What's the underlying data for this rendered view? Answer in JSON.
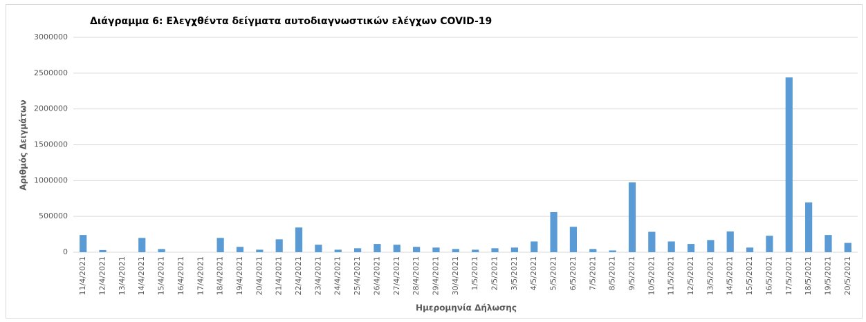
{
  "chart_data": {
    "type": "bar",
    "title": "Διάγραμμα 6: Ελεγχθέντα δείγματα αυτοδιαγνωστικών  ελέγχων COVID-19",
    "x_label": "Ημερομηνία Δήλωσης",
    "y_label": "Αριθμός Δειγμάτων",
    "categories": [
      "11/4/2021",
      "12/4/2021",
      "13/4/2021",
      "14/4/2021",
      "15/4/2021",
      "16/4/2021",
      "17/4/2021",
      "18/4/2021",
      "19/4/2021",
      "20/4/2021",
      "21/4/2021",
      "22/4/2021",
      "23/4/2021",
      "24/4/2021",
      "25/4/2021",
      "26/4/2021",
      "27/4/2021",
      "28/4/2021",
      "29/4/2021",
      "30/4/2021",
      "1/5/2021",
      "2/5/2021",
      "3/5/2021",
      "4/5/2021",
      "5/5/2021",
      "6/5/2021",
      "7/5/2021",
      "8/5/2021",
      "9/5/2021",
      "10/5/2021",
      "11/5/2021",
      "12/5/2021",
      "13/5/2021",
      "14/5/2021",
      "15/5/2021",
      "16/5/2021",
      "17/5/2021",
      "18/5/2021",
      "19/5/2021",
      "20/5/2021"
    ],
    "values": [
      240000,
      30000,
      0,
      200000,
      45000,
      0,
      0,
      200000,
      75000,
      35000,
      180000,
      345000,
      105000,
      35000,
      55000,
      115000,
      105000,
      75000,
      65000,
      45000,
      35000,
      55000,
      65000,
      150000,
      560000,
      355000,
      45000,
      25000,
      975000,
      285000,
      150000,
      115000,
      170000,
      290000,
      65000,
      230000,
      2440000,
      695000,
      240000,
      130000
    ],
    "color": "#5b9bd5",
    "ylim": [
      0,
      3000000
    ],
    "yticks": [
      0,
      500000,
      1000000,
      1500000,
      2000000,
      2500000,
      3000000
    ],
    "grid": true
  }
}
